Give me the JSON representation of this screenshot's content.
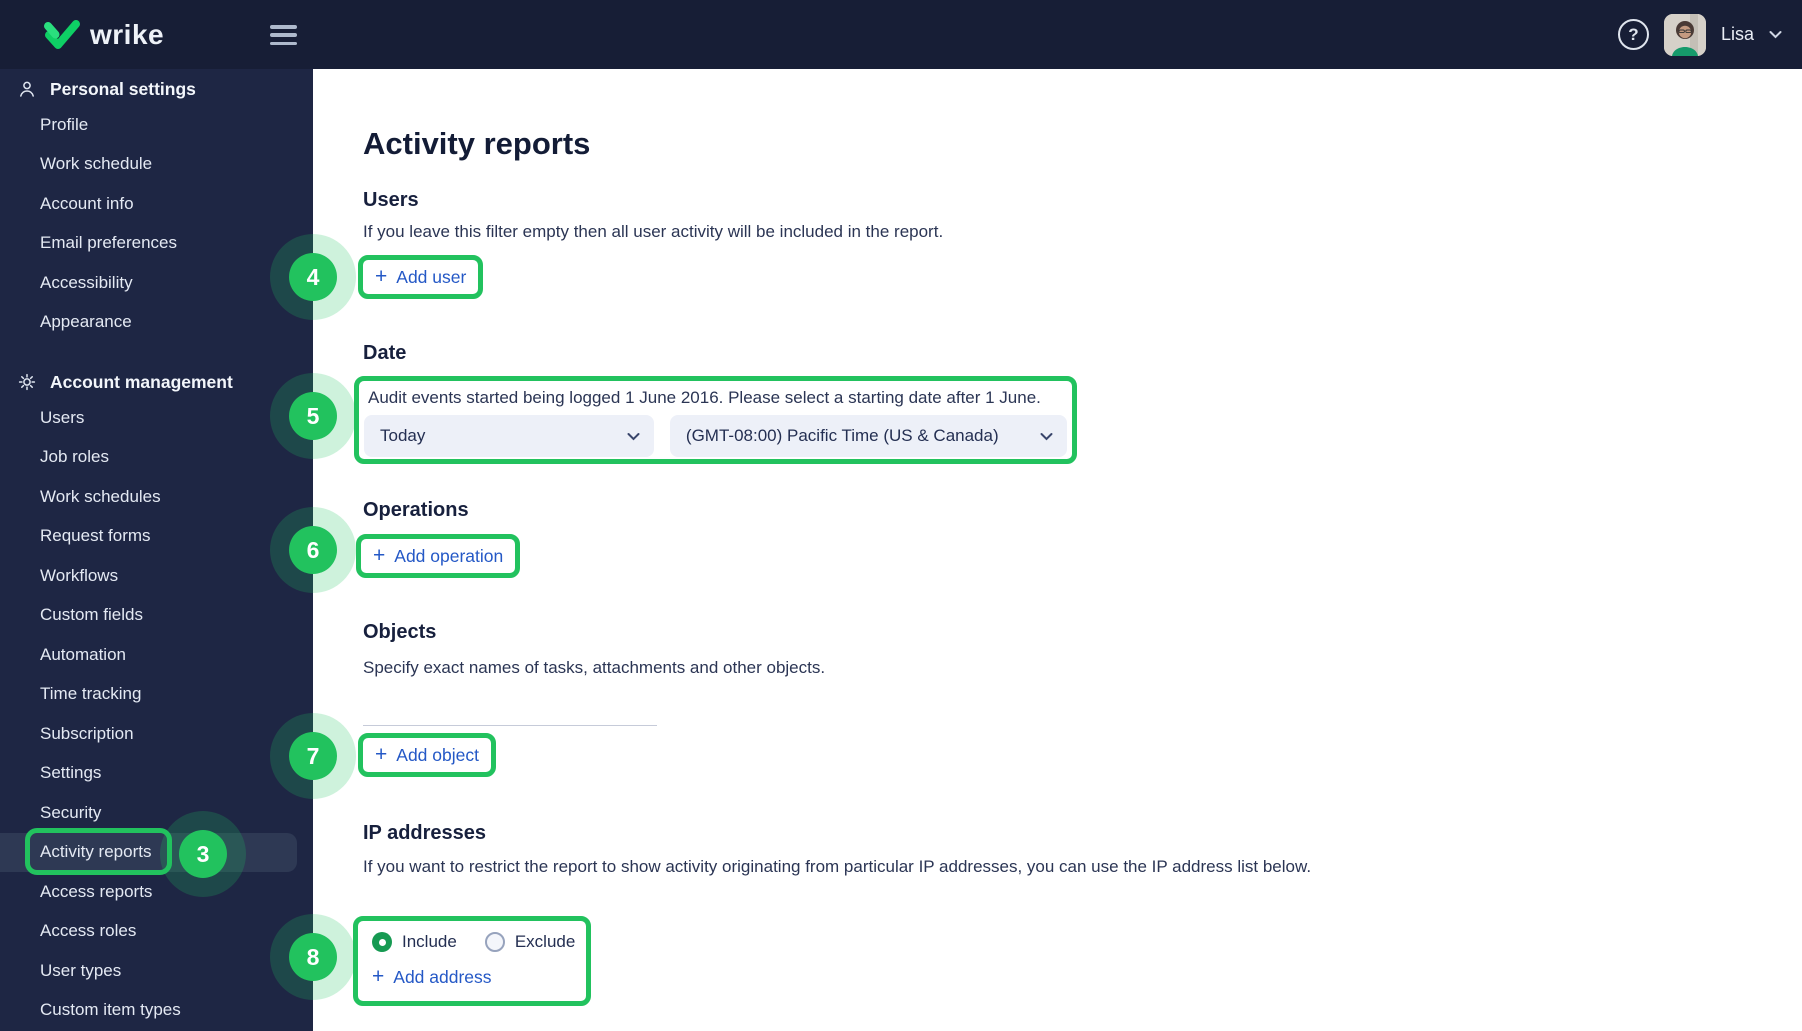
{
  "topbar": {
    "logo_text": "wrike",
    "help_icon": "?",
    "user_name": "Lisa"
  },
  "sidebar": {
    "sections": [
      {
        "label": "Personal settings",
        "icon": "person",
        "items": [
          "Profile",
          "Work schedule",
          "Account info",
          "Email preferences",
          "Accessibility",
          "Appearance"
        ]
      },
      {
        "label": "Account management",
        "icon": "gear",
        "items": [
          "Users",
          "Job roles",
          "Work schedules",
          "Request forms",
          "Workflows",
          "Custom fields",
          "Automation",
          "Time tracking",
          "Subscription",
          "Settings",
          "Security",
          "Activity reports",
          "Access reports",
          "Access roles",
          "User types",
          "Custom item types"
        ]
      }
    ],
    "active_item": "Activity reports"
  },
  "main": {
    "title": "Activity reports",
    "users": {
      "heading": "Users",
      "description": "If you leave this filter empty then all user activity will be included in the report.",
      "add_label": "Add user"
    },
    "date": {
      "heading": "Date",
      "notice": "Audit events started being logged 1 June 2016. Please select a starting date after 1 June.",
      "date_value": "Today",
      "timezone_value": "(GMT-08:00) Pacific Time (US & Canada)"
    },
    "operations": {
      "heading": "Operations",
      "add_label": "Add operation"
    },
    "objects": {
      "heading": "Objects",
      "description": "Specify exact names of tasks, attachments and other objects.",
      "add_label": "Add object"
    },
    "ip": {
      "heading": "IP addresses",
      "description": "If you want to restrict the report to show activity originating from particular IP addresses, you can use the IP address list below.",
      "include_label": "Include",
      "exclude_label": "Exclude",
      "selected_option": "Include",
      "add_label": "Add address"
    }
  },
  "annotations": {
    "badge_3": "3",
    "badge_4": "4",
    "badge_5": "5",
    "badge_6": "6",
    "badge_7": "7",
    "badge_8": "8",
    "accent_color": "#22c25e"
  },
  "icons": {
    "plus": "+"
  },
  "colors": {
    "topbar": "#171e36",
    "sidebar": "#1e2644",
    "active_row": "#2e3954",
    "link_blue": "#2458c6",
    "text_dark": "#232e52",
    "brand_green": "#0ecf63",
    "annotation_green": "#22c25e"
  }
}
